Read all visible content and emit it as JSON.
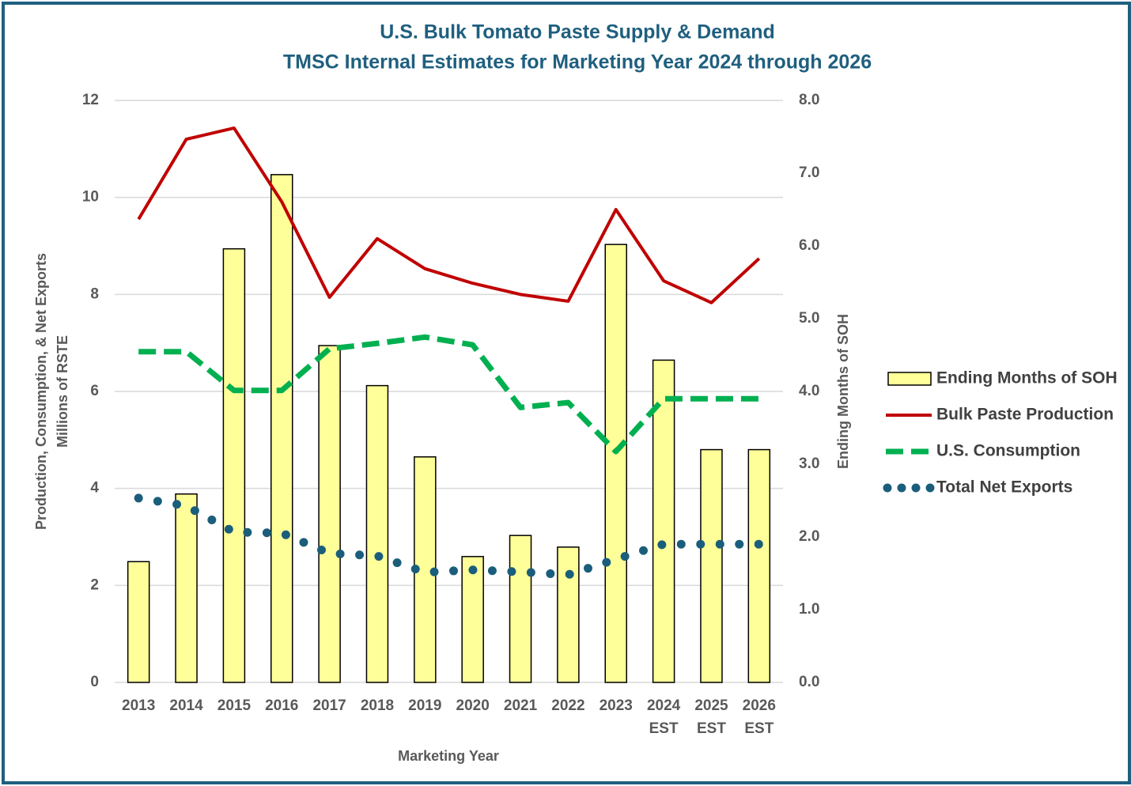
{
  "chart_data": {
    "type": "bar_line",
    "title": "U.S. Bulk Tomato Paste Supply & Demand",
    "subtitle": "TMSC Internal Estimates for Marketing Year 2024 through 2026",
    "x_label": "Marketing Year",
    "y_label": [
      "Production, Consumption, & Net Exports",
      "Millions of RSTE"
    ],
    "y2_label": "Ending Months of SOH",
    "categories": [
      "2013",
      "2014",
      "2015",
      "2016",
      "2017",
      "2018",
      "2019",
      "2020",
      "2021",
      "2022",
      "2023",
      "2024 EST",
      "2025 EST",
      "2026 EST"
    ],
    "ylim": [
      0,
      12
    ],
    "yticks": [
      0,
      2,
      4,
      6,
      8,
      10,
      12
    ],
    "y2lim": [
      0,
      8
    ],
    "y2ticks": [
      {
        "value": 0,
        "label": "0.0"
      },
      {
        "value": 1,
        "label": "1.0"
      },
      {
        "value": 2,
        "label": "2.0"
      },
      {
        "value": 3,
        "label": "3.0"
      },
      {
        "value": 4,
        "label": "4.0"
      },
      {
        "value": 5,
        "label": "5.0"
      },
      {
        "value": 6,
        "label": "6.0"
      },
      {
        "value": 7,
        "label": "7.0"
      },
      {
        "value": 8,
        "label": "8.0"
      }
    ],
    "grid": true,
    "legend": "right",
    "series": [
      {
        "name": "Ending Months of SOH",
        "type": "bar",
        "axis": "y2",
        "color": "#ffff99",
        "values": [
          1.66,
          2.59,
          5.96,
          6.98,
          4.63,
          4.08,
          3.1,
          1.73,
          2.02,
          1.86,
          6.02,
          4.43,
          3.2,
          3.2
        ]
      },
      {
        "name": "Bulk Paste Production",
        "type": "line",
        "color": "#c00000",
        "values": [
          9.55,
          11.2,
          11.43,
          9.91,
          7.94,
          9.15,
          8.53,
          8.23,
          8.0,
          7.86,
          9.75,
          8.28,
          7.83,
          8.74
        ]
      },
      {
        "name": "U.S. Consumption",
        "type": "dashed",
        "color": "#00b050",
        "values": [
          6.82,
          6.82,
          6.02,
          6.02,
          6.88,
          6.99,
          7.12,
          6.96,
          5.67,
          5.77,
          4.76,
          5.85,
          5.85,
          5.85
        ]
      },
      {
        "name": "Total Net Exports",
        "type": "dotted",
        "color": "#1b5e7b",
        "values": [
          3.8,
          3.64,
          3.1,
          3.08,
          2.66,
          2.61,
          2.27,
          2.32,
          2.28,
          2.22,
          2.54,
          2.85,
          2.85,
          2.85
        ]
      }
    ]
  }
}
